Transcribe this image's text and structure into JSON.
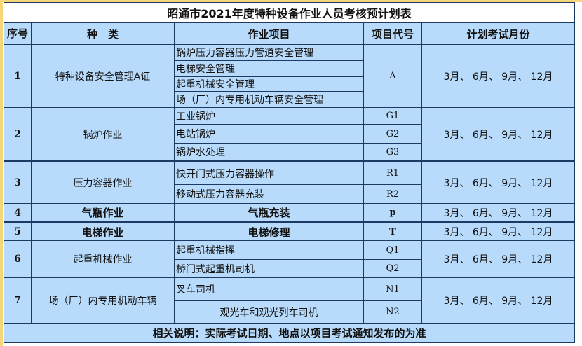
{
  "title": "昭通市2021年度特种设备作业人员考核预计划表",
  "headers": {
    "seq": "序号",
    "category": "种　类",
    "item": "作业项目",
    "code": "项目代号",
    "months": "计划考试月份"
  },
  "rows": [
    {
      "seq": "1",
      "category": "特种设备安全管理A证",
      "items": [
        "锅炉压力容器压力管道安全管理",
        "电梯安全管理",
        "起重机械安全管理",
        "场（厂）内专用机动车辆安全管理"
      ],
      "codes": [
        "A"
      ],
      "months": "3月、 6月、 9月、 12月"
    },
    {
      "seq": "2",
      "category": "锅炉作业",
      "items": [
        "工业锅炉",
        "电站锅炉",
        "锅炉水处理"
      ],
      "codes": [
        "G1",
        "G2",
        "G3"
      ],
      "months": "3月、 6月、 9月、 12月"
    },
    {
      "seq": "3",
      "category": "压力容器作业",
      "items": [
        "快开门式压力容器操作",
        "移动式压力容器充装"
      ],
      "codes": [
        "R1",
        "R2"
      ],
      "months": "3月、 6月、 9月、 12月"
    },
    {
      "seq": "4",
      "category": "气瓶作业",
      "items": [
        "气瓶充装"
      ],
      "codes": [
        "p"
      ],
      "months": "3月、 6月、 9月、 12月"
    },
    {
      "seq": "5",
      "category": "电梯作业",
      "items": [
        "电梯修理"
      ],
      "codes": [
        "T"
      ],
      "months": "3月、 6月、 9月、 12月"
    },
    {
      "seq": "6",
      "category": "起重机械作业",
      "items": [
        "起重机械指挥",
        "桥门式起重机司机"
      ],
      "codes": [
        "Q1",
        "Q2"
      ],
      "months": "3月、 6月、 9月、 12月"
    },
    {
      "seq": "7",
      "category": "场（厂）内专用机动车辆",
      "items": [
        "叉车司机",
        "观光车和观光列车司机"
      ],
      "codes": [
        "N1",
        "N2"
      ],
      "months": "3月、 6月、 9月、 12月"
    }
  ],
  "footer": "相关说明：实际考试日期、地点以项目考试通知发布的为准"
}
